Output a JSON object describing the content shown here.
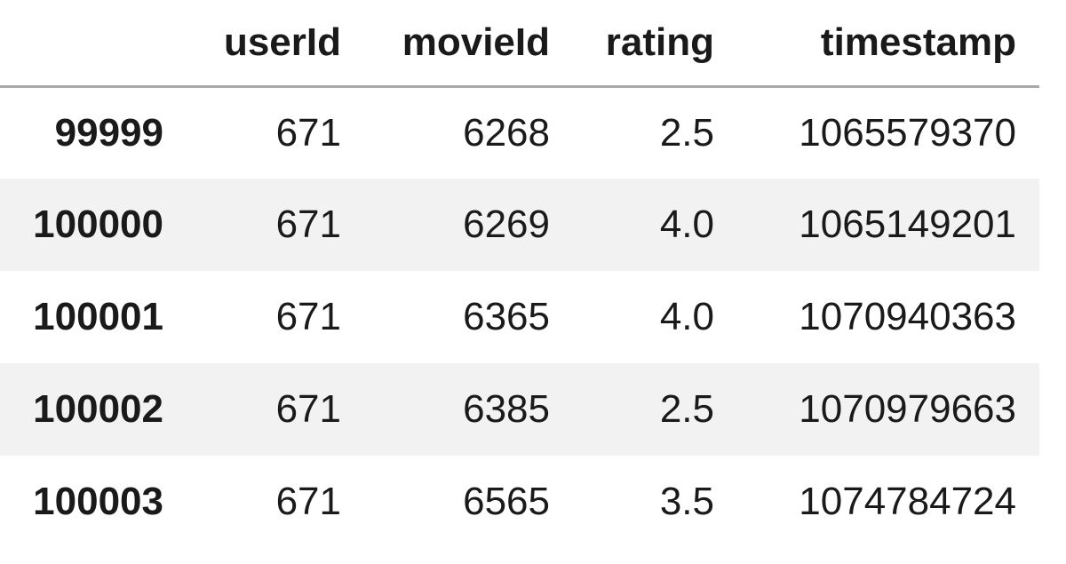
{
  "table": {
    "index_header": "",
    "columns": [
      "userId",
      "movieId",
      "rating",
      "timestamp"
    ],
    "rows": [
      {
        "index": "99999",
        "cells": [
          "671",
          "6268",
          "2.5",
          "1065579370"
        ]
      },
      {
        "index": "100000",
        "cells": [
          "671",
          "6269",
          "4.0",
          "1065149201"
        ]
      },
      {
        "index": "100001",
        "cells": [
          "671",
          "6365",
          "4.0",
          "1070940363"
        ]
      },
      {
        "index": "100002",
        "cells": [
          "671",
          "6385",
          "2.5",
          "1070979663"
        ]
      },
      {
        "index": "100003",
        "cells": [
          "671",
          "6565",
          "3.5",
          "1074784724"
        ]
      }
    ]
  },
  "colors": {
    "header_rule": "#a9a9a9",
    "stripe": "#f2f2f2",
    "text": "#1a1a1a"
  }
}
